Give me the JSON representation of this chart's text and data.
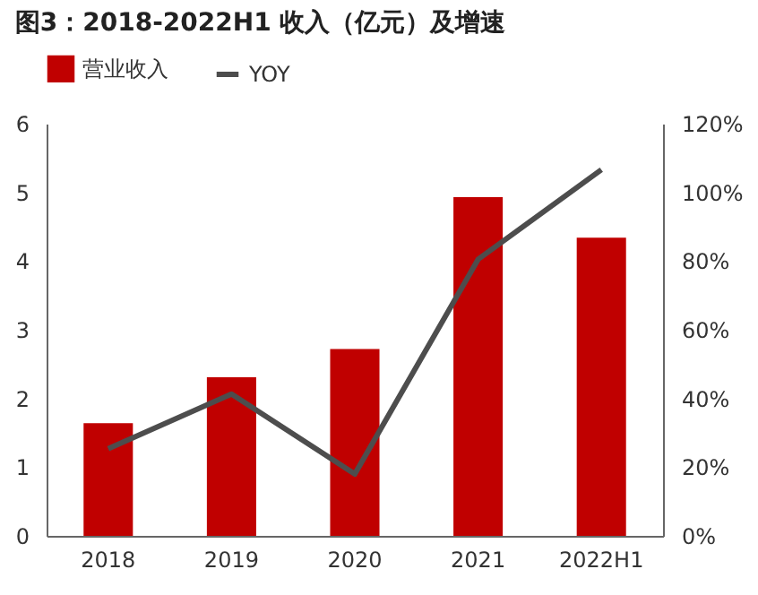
{
  "chart_data": {
    "type": "bar",
    "title": "图3：2018-2022H1 收入（亿元）及增速",
    "categories": [
      "2018",
      "2019",
      "2020",
      "2021",
      "2022H1"
    ],
    "series": [
      {
        "name": "营业收入",
        "color": "#c00000",
        "values": [
          1.64,
          2.31,
          2.72,
          4.93,
          4.34
        ]
      },
      {
        "name": "YOY",
        "type": "line",
        "axis": "y2",
        "color": "#4d4d4d",
        "values": [
          25.4,
          41.3,
          18,
          80.5,
          106.6
        ]
      }
    ],
    "ylim": [
      0,
      6
    ],
    "yticks": [
      0,
      1,
      2,
      3,
      4,
      5,
      6
    ],
    "y2lim": [
      0,
      120
    ],
    "y2ticks": [
      {
        "value": 0,
        "label": "0%"
      },
      {
        "value": 20,
        "label": "20%"
      },
      {
        "value": 40,
        "label": "40%"
      },
      {
        "value": 60,
        "label": "60%"
      },
      {
        "value": 80,
        "label": "80%"
      },
      {
        "value": 100,
        "label": "100%"
      },
      {
        "value": 120,
        "label": "120%"
      }
    ],
    "legend": "top",
    "grid": false,
    "marker": "none"
  }
}
